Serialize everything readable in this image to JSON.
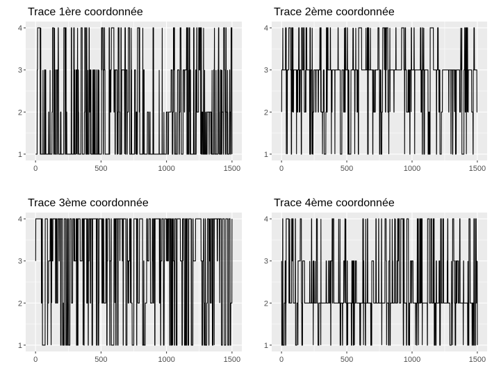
{
  "chart_data": [
    {
      "type": "line",
      "title": "Trace 1ère coordonnée",
      "xlim": [
        -75,
        1575
      ],
      "ylim": [
        0.85,
        4.15
      ],
      "x_ticks": [
        0,
        500,
        1000,
        1500
      ],
      "y_ticks": [
        1,
        2,
        3,
        4
      ],
      "n_points": 1500,
      "value_set": [
        1,
        2,
        3,
        4
      ],
      "start_value": 1,
      "end_value": 1,
      "approx_frequency": {
        "1": 0.5,
        "2": 0.15,
        "3": 0.17,
        "4": 0.18
      },
      "grid": true,
      "background": "#ebebeb",
      "line_color": "#000000"
    },
    {
      "type": "line",
      "title": "Trace 2ème coordonnée",
      "xlim": [
        -75,
        1575
      ],
      "ylim": [
        0.85,
        4.15
      ],
      "x_ticks": [
        0,
        500,
        1000,
        1500
      ],
      "y_ticks": [
        1,
        2,
        3,
        4
      ],
      "n_points": 1500,
      "value_set": [
        1,
        2,
        3,
        4
      ],
      "start_value": 2,
      "end_value": 2,
      "approx_frequency": {
        "1": 0.12,
        "2": 0.13,
        "3": 0.6,
        "4": 0.15
      },
      "grid": true,
      "background": "#ebebeb",
      "line_color": "#000000"
    },
    {
      "type": "line",
      "title": "Trace 3ème coordonnée",
      "xlim": [
        -75,
        1575
      ],
      "ylim": [
        0.85,
        4.15
      ],
      "x_ticks": [
        0,
        500,
        1000,
        1500
      ],
      "y_ticks": [
        1,
        2,
        3,
        4
      ],
      "n_points": 1500,
      "value_set": [
        1,
        2,
        3,
        4
      ],
      "start_value": 3,
      "end_value": 4,
      "approx_frequency": {
        "1": 0.2,
        "2": 0.1,
        "3": 0.12,
        "4": 0.58
      },
      "grid": true,
      "background": "#ebebeb",
      "line_color": "#000000"
    },
    {
      "type": "line",
      "title": "Trace 4ème coordonnée",
      "xlim": [
        -75,
        1575
      ],
      "ylim": [
        0.85,
        4.15
      ],
      "x_ticks": [
        0,
        500,
        1000,
        1500
      ],
      "y_ticks": [
        1,
        2,
        3,
        4
      ],
      "n_points": 1500,
      "value_set": [
        1,
        2,
        3,
        4
      ],
      "start_value": 3,
      "end_value": 1,
      "approx_frequency": {
        "1": 0.12,
        "2": 0.6,
        "3": 0.13,
        "4": 0.15
      },
      "grid": true,
      "background": "#ebebeb",
      "line_color": "#000000"
    }
  ]
}
